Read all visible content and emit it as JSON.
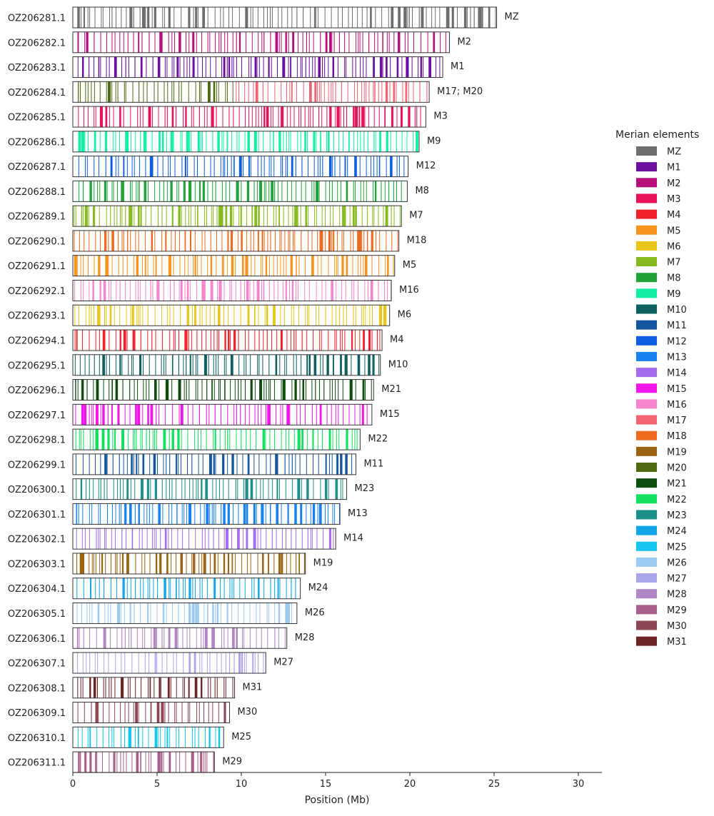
{
  "chart_data": {
    "type": "chromosome_painting",
    "xlabel": "Position (Mb)",
    "xlim": [
      0,
      31.4
    ],
    "xticks": [
      0,
      5,
      10,
      15,
      20,
      25,
      30
    ],
    "legend": {
      "title": "Merian elements",
      "placement": "right",
      "entries": [
        {
          "label": "MZ",
          "color": "#6e6e6e"
        },
        {
          "label": "M1",
          "color": "#6a0fa0"
        },
        {
          "label": "M2",
          "color": "#b5107a"
        },
        {
          "label": "M3",
          "color": "#e8125a"
        },
        {
          "label": "M4",
          "color": "#f0212a"
        },
        {
          "label": "M5",
          "color": "#f7941d"
        },
        {
          "label": "M6",
          "color": "#e8c619"
        },
        {
          "label": "M7",
          "color": "#86bb1f"
        },
        {
          "label": "M8",
          "color": "#22a33a"
        },
        {
          "label": "M9",
          "color": "#14f0a3"
        },
        {
          "label": "M10",
          "color": "#0e5f5f"
        },
        {
          "label": "M11",
          "color": "#1455a0"
        },
        {
          "label": "M12",
          "color": "#0d5fe0"
        },
        {
          "label": "M13",
          "color": "#1a82f0"
        },
        {
          "label": "M14",
          "color": "#a36cf0"
        },
        {
          "label": "M15",
          "color": "#f214e8"
        },
        {
          "label": "M16",
          "color": "#f585cf"
        },
        {
          "label": "M17",
          "color": "#f26470"
        },
        {
          "label": "M18",
          "color": "#ec6b1e"
        },
        {
          "label": "M19",
          "color": "#9a6512"
        },
        {
          "label": "M20",
          "color": "#4f6a14"
        },
        {
          "label": "M21",
          "color": "#0d4d0d"
        },
        {
          "label": "M22",
          "color": "#14e060"
        },
        {
          "label": "M23",
          "color": "#1c9088"
        },
        {
          "label": "M24",
          "color": "#10a6e8"
        },
        {
          "label": "M25",
          "color": "#12c6f0"
        },
        {
          "label": "M26",
          "color": "#9ccaf0"
        },
        {
          "label": "M27",
          "color": "#a9a6ec"
        },
        {
          "label": "M28",
          "color": "#b286c3"
        },
        {
          "label": "M29",
          "color": "#a8608a"
        },
        {
          "label": "M30",
          "color": "#8c4553"
        },
        {
          "label": "M31",
          "color": "#6c2424"
        }
      ]
    },
    "chromosomes": [
      {
        "id": "OZ206281.1",
        "length_mb": 25.15,
        "merian": "MZ",
        "colors": [
          "#6e6e6e"
        ]
      },
      {
        "id": "OZ206282.1",
        "length_mb": 22.35,
        "merian": "M2",
        "colors": [
          "#b5107a"
        ]
      },
      {
        "id": "OZ206283.1",
        "length_mb": 21.95,
        "merian": "M1",
        "colors": [
          "#6a0fa0"
        ]
      },
      {
        "id": "OZ206284.1",
        "length_mb": 21.15,
        "merian": "M17; M20",
        "colors": [
          "#4f6a14",
          "#f26470"
        ],
        "split_mb": 9.6
      },
      {
        "id": "OZ206285.1",
        "length_mb": 20.95,
        "merian": "M3",
        "colors": [
          "#e8125a"
        ]
      },
      {
        "id": "OZ206286.1",
        "length_mb": 20.55,
        "merian": "M9",
        "colors": [
          "#14f0a3"
        ]
      },
      {
        "id": "OZ206287.1",
        "length_mb": 19.9,
        "merian": "M12",
        "colors": [
          "#0d5fe0"
        ]
      },
      {
        "id": "OZ206288.1",
        "length_mb": 19.85,
        "merian": "M8",
        "colors": [
          "#22a33a"
        ]
      },
      {
        "id": "OZ206289.1",
        "length_mb": 19.5,
        "merian": "M7",
        "colors": [
          "#86bb1f"
        ]
      },
      {
        "id": "OZ206290.1",
        "length_mb": 19.35,
        "merian": "M18",
        "colors": [
          "#ec6b1e"
        ]
      },
      {
        "id": "OZ206291.1",
        "length_mb": 19.1,
        "merian": "M5",
        "colors": [
          "#f7941d"
        ]
      },
      {
        "id": "OZ206292.1",
        "length_mb": 18.9,
        "merian": "M16",
        "colors": [
          "#f585cf"
        ]
      },
      {
        "id": "OZ206293.1",
        "length_mb": 18.8,
        "merian": "M6",
        "colors": [
          "#e8c619"
        ]
      },
      {
        "id": "OZ206294.1",
        "length_mb": 18.35,
        "merian": "M4",
        "colors": [
          "#f0212a"
        ]
      },
      {
        "id": "OZ206295.1",
        "length_mb": 18.25,
        "merian": "M10",
        "colors": [
          "#0e5f5f"
        ]
      },
      {
        "id": "OZ206296.1",
        "length_mb": 17.85,
        "merian": "M21",
        "colors": [
          "#0d4d0d"
        ]
      },
      {
        "id": "OZ206297.1",
        "length_mb": 17.75,
        "merian": "M15",
        "colors": [
          "#f214e8"
        ]
      },
      {
        "id": "OZ206298.1",
        "length_mb": 17.05,
        "merian": "M22",
        "colors": [
          "#14e060"
        ]
      },
      {
        "id": "OZ206299.1",
        "length_mb": 16.8,
        "merian": "M11",
        "colors": [
          "#1455a0"
        ]
      },
      {
        "id": "OZ206300.1",
        "length_mb": 16.25,
        "merian": "M23",
        "colors": [
          "#1c9088"
        ]
      },
      {
        "id": "OZ206301.1",
        "length_mb": 15.85,
        "merian": "M13",
        "colors": [
          "#1a82f0"
        ]
      },
      {
        "id": "OZ206302.1",
        "length_mb": 15.6,
        "merian": "M14",
        "colors": [
          "#a36cf0"
        ]
      },
      {
        "id": "OZ206303.1",
        "length_mb": 13.8,
        "merian": "M19",
        "colors": [
          "#9a6512"
        ]
      },
      {
        "id": "OZ206304.1",
        "length_mb": 13.5,
        "merian": "M24",
        "colors": [
          "#10a6e8"
        ]
      },
      {
        "id": "OZ206305.1",
        "length_mb": 13.3,
        "merian": "M26",
        "colors": [
          "#9ccaf0"
        ]
      },
      {
        "id": "OZ206306.1",
        "length_mb": 12.7,
        "merian": "M28",
        "colors": [
          "#b286c3"
        ]
      },
      {
        "id": "OZ206307.1",
        "length_mb": 11.45,
        "merian": "M27",
        "colors": [
          "#a9a6ec"
        ]
      },
      {
        "id": "OZ206308.1",
        "length_mb": 9.6,
        "merian": "M31",
        "colors": [
          "#6c2424"
        ]
      },
      {
        "id": "OZ206309.1",
        "length_mb": 9.3,
        "merian": "M30",
        "colors": [
          "#8c4553"
        ]
      },
      {
        "id": "OZ206310.1",
        "length_mb": 8.95,
        "merian": "M25",
        "colors": [
          "#12c6f0"
        ]
      },
      {
        "id": "OZ206311.1",
        "length_mb": 8.4,
        "merian": "M29",
        "colors": [
          "#a8608a"
        ]
      }
    ]
  }
}
